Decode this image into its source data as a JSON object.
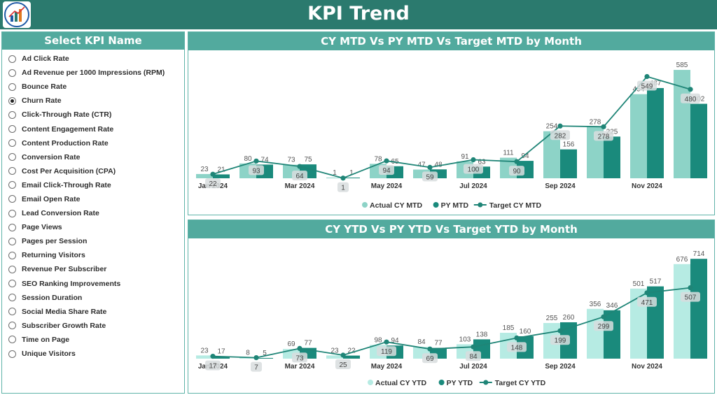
{
  "header": {
    "title": "KPI Trend",
    "logo_icon": "bar-chart-logo-icon"
  },
  "sidebar": {
    "title": "Select KPI Name",
    "selected_index": 3,
    "items": [
      "Ad Click Rate",
      "Ad Revenue per 1000 Impressions (RPM)",
      "Bounce Rate",
      "Churn Rate",
      "Click-Through Rate (CTR)",
      "Content Engagement Rate",
      "Content Production Rate",
      "Conversion Rate",
      "Cost Per Acquisition (CPA)",
      "Email Click-Through Rate",
      "Email Open Rate",
      "Lead Conversion Rate",
      "Page Views",
      "Pages per Session",
      "Returning Visitors",
      "Revenue Per Subscriber",
      "SEO Ranking Improvements",
      "Session Duration",
      "Social Media Share Rate",
      "Subscriber Growth Rate",
      "Time on Page",
      "Unique Visitors"
    ]
  },
  "colors": {
    "header": "#2b7a6e",
    "panel_title": "#52aa9e",
    "actual": "#8dd3c7",
    "actual_ytd": "#b6ebe3",
    "prior": "#1a8a7c",
    "target": "#1f8577"
  },
  "chart_data": [
    {
      "type": "bar",
      "title": "CY MTD Vs PY MTD Vs Target MTD by Month",
      "categories": [
        "Jan 2024",
        "Feb 2024",
        "Mar 2024",
        "Apr 2024",
        "May 2024",
        "Jun 2024",
        "Jul 2024",
        "Aug 2024",
        "Sep 2024",
        "Oct 2024",
        "Nov 2024",
        "Dec 2024"
      ],
      "tick_labels": [
        "Jan 2024",
        "",
        "Mar 2024",
        "",
        "May 2024",
        "",
        "Jul 2024",
        "",
        "Sep 2024",
        "",
        "Nov 2024",
        ""
      ],
      "series": [
        {
          "name": "Actual CY MTD",
          "type": "bar",
          "values": [
            23,
            80,
            73,
            1,
            78,
            47,
            91,
            111,
            254,
            278,
            454,
            585
          ]
        },
        {
          "name": "PY MTD",
          "type": "bar",
          "values": [
            21,
            74,
            75,
            1,
            65,
            48,
            63,
            94,
            156,
            225,
            487,
            402
          ]
        },
        {
          "name": "Target CY MTD",
          "type": "line",
          "values": [
            22,
            93,
            64,
            1,
            94,
            59,
            100,
            90,
            282,
            278,
            549,
            480
          ]
        }
      ],
      "ylim": [
        0,
        600
      ],
      "legend": "bottom"
    },
    {
      "type": "bar",
      "title": "CY YTD Vs PY YTD Vs Target YTD by Month",
      "categories": [
        "Jan 2024",
        "Feb 2024",
        "Mar 2024",
        "Apr 2024",
        "May 2024",
        "Jun 2024",
        "Jul 2024",
        "Aug 2024",
        "Sep 2024",
        "Oct 2024",
        "Nov 2024",
        "Dec 2024"
      ],
      "tick_labels": [
        "Jan 2024",
        "",
        "Mar 2024",
        "",
        "May 2024",
        "",
        "Jul 2024",
        "",
        "Sep 2024",
        "",
        "Nov 2024",
        ""
      ],
      "series": [
        {
          "name": "Actual CY YTD",
          "type": "bar",
          "values": [
            23,
            8,
            69,
            23,
            98,
            84,
            103,
            185,
            255,
            356,
            501,
            676
          ]
        },
        {
          "name": "PY YTD",
          "type": "bar",
          "values": [
            17,
            5,
            77,
            22,
            94,
            77,
            138,
            160,
            260,
            346,
            517,
            714
          ]
        },
        {
          "name": "Target CY YTD",
          "type": "line",
          "values": [
            17,
            7,
            73,
            25,
            119,
            69,
            84,
            148,
            199,
            299,
            471,
            507
          ]
        }
      ],
      "ylim": [
        0,
        730
      ],
      "legend": "bottom"
    }
  ]
}
